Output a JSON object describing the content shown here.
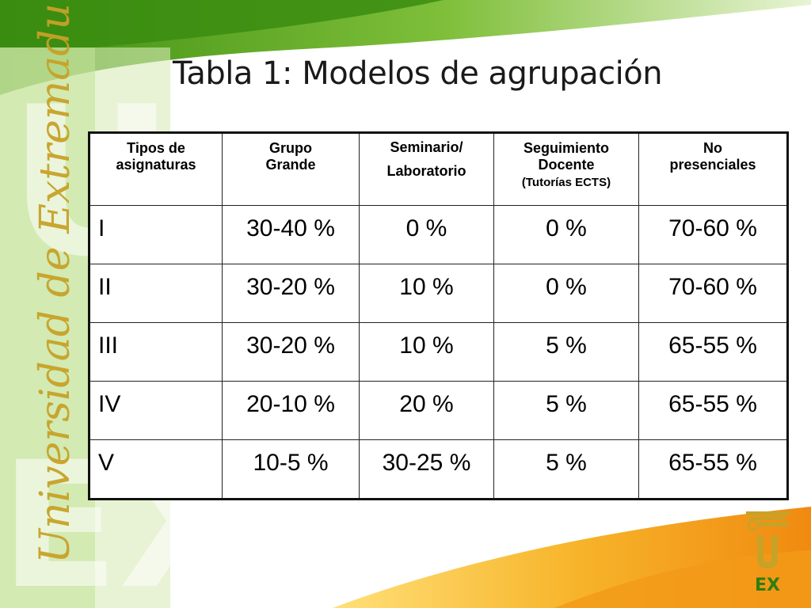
{
  "slide": {
    "title": "Tabla 1: Modelos de agrupación",
    "vertical_brand": "Universidad de Extremadura",
    "logo_text": "UEX"
  },
  "table": {
    "headers": [
      {
        "line1": "Tipos de",
        "line2": "asignaturas",
        "line3": ""
      },
      {
        "line1": "Grupo",
        "line2": "Grande",
        "line3": ""
      },
      {
        "line1": "Seminario/",
        "line2": "Laboratorio",
        "line3": ""
      },
      {
        "line1": "Seguimiento",
        "line2": "Docente",
        "line3": "(Tutorías ECTS)"
      },
      {
        "line1": "No",
        "line2": "presenciales",
        "line3": ""
      }
    ],
    "rows": [
      [
        "I",
        "30-40 %",
        "0 %",
        "0 %",
        "70-60 %"
      ],
      [
        "II",
        "30-20 %",
        "10 %",
        "0 %",
        "70-60 %"
      ],
      [
        "III",
        "30-20 %",
        "10 %",
        "5 %",
        "65-55 %"
      ],
      [
        "IV",
        "20-10 %",
        "20 %",
        "5 %",
        "65-55 %"
      ],
      [
        "V",
        "10-5 %",
        "30-25 %",
        "5 %",
        "65-55 %"
      ]
    ]
  },
  "colors": {
    "green_dark": "#4f9a1c",
    "green_light": "#a6d267",
    "orange": "#f0a020",
    "gold": "#c8a227"
  }
}
